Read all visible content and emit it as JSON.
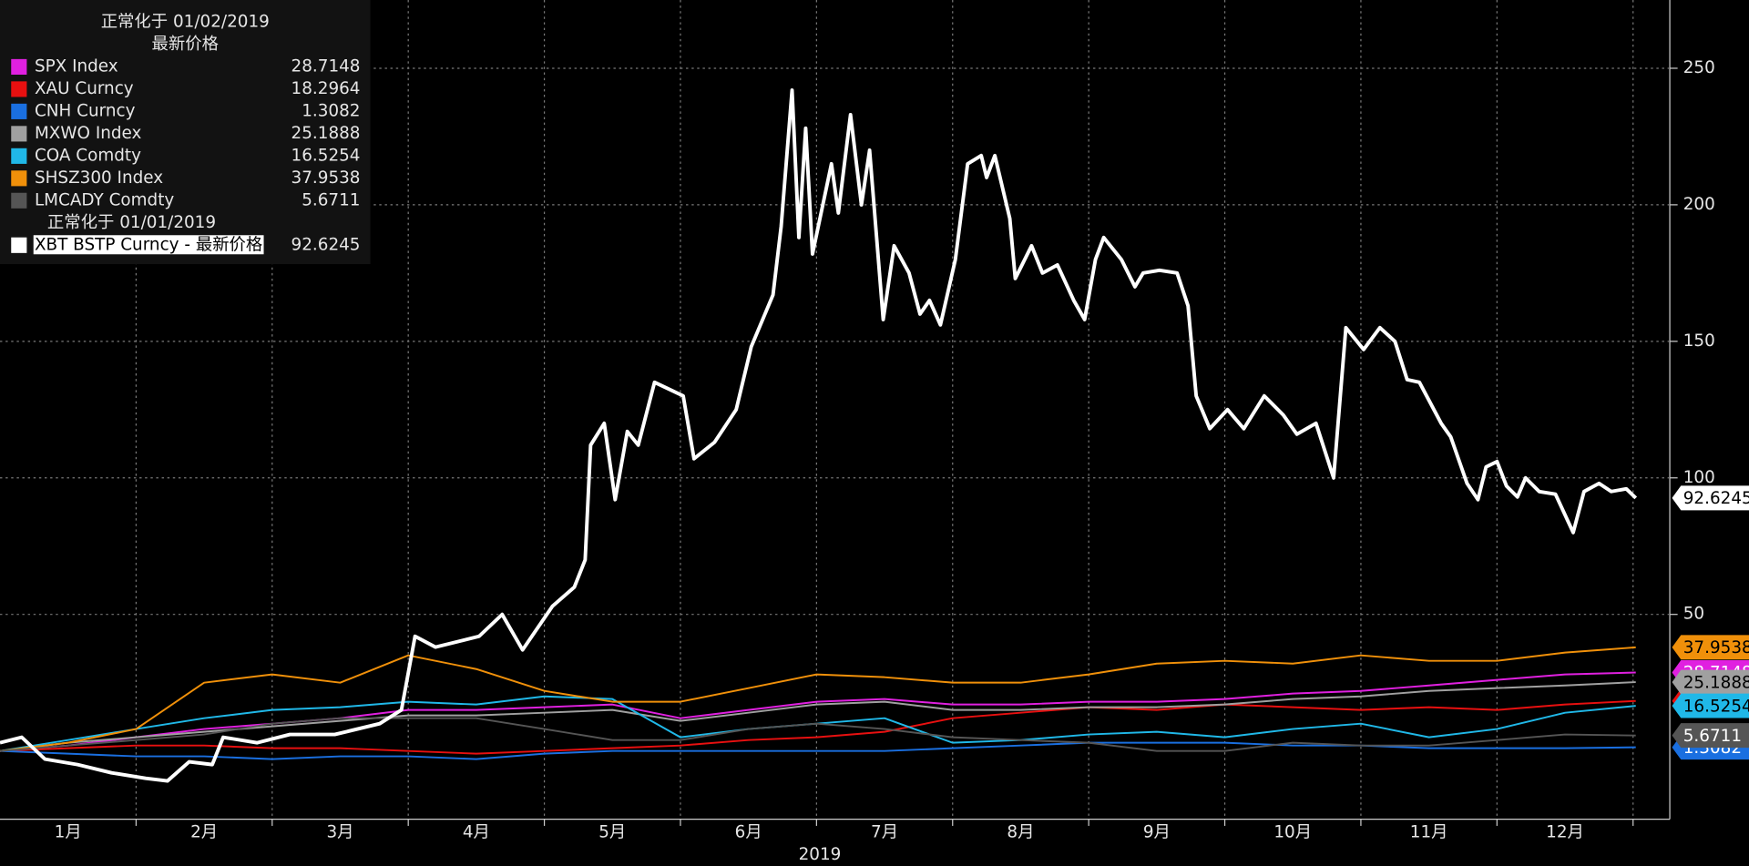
{
  "chart_data": {
    "type": "line",
    "legend_header": [
      "正常化于 01/02/2019",
      "最新价格"
    ],
    "legend_subheader": "正常化于 01/01/2019",
    "xlabel": "2019",
    "xlim": [
      1,
      13.27
    ],
    "xticks": [
      {
        "value": 1.5,
        "label": "1月"
      },
      {
        "value": 2.5,
        "label": "2月"
      },
      {
        "value": 3.5,
        "label": "3月"
      },
      {
        "value": 4.5,
        "label": "4月"
      },
      {
        "value": 5.5,
        "label": "5月"
      },
      {
        "value": 6.5,
        "label": "6月"
      },
      {
        "value": 7.5,
        "label": "7月"
      },
      {
        "value": 8.5,
        "label": "8月"
      },
      {
        "value": 9.5,
        "label": "9月"
      },
      {
        "value": 10.5,
        "label": "10月"
      },
      {
        "value": 11.5,
        "label": "11月"
      },
      {
        "value": 12.5,
        "label": "12月"
      }
    ],
    "x_gridlines": [
      2,
      3,
      4,
      5,
      6,
      7,
      8,
      9,
      10,
      11,
      12,
      13
    ],
    "ylim": [
      -25,
      275
    ],
    "yticks": [
      50,
      100,
      150,
      200,
      250
    ],
    "grid": true,
    "legend": "upper left",
    "x": [
      1,
      1.5,
      2,
      2.5,
      3,
      3.5,
      4,
      4.5,
      5,
      5.5,
      6,
      6.5,
      7,
      7.5,
      8,
      8.5,
      9,
      9.5,
      10,
      10.5,
      11,
      11.5,
      12,
      12.5,
      13.02
    ],
    "series": [
      {
        "name": "SPX Index",
        "color": "#e020e0",
        "values": [
          0,
          2,
          5,
          8,
          10,
          12,
          15,
          15,
          16,
          17,
          12,
          15,
          18,
          19,
          17,
          17,
          18,
          18,
          19,
          21,
          22,
          24,
          26,
          28,
          28.7148
        ]
      },
      {
        "name": "XAU Curncy",
        "color": "#e81010",
        "values": [
          0,
          1,
          2,
          2,
          1,
          1,
          0,
          -1,
          0,
          1,
          2,
          4,
          5,
          7,
          12,
          14,
          16,
          15,
          17,
          16,
          15,
          16,
          15,
          17,
          18.2964
        ]
      },
      {
        "name": "CNH Curncy",
        "color": "#1a6fe0",
        "values": [
          0,
          -1,
          -2,
          -2,
          -3,
          -2,
          -2,
          -3,
          -1,
          0,
          0,
          0,
          0,
          0,
          1,
          2,
          3,
          3,
          3,
          2,
          2,
          1,
          1,
          1,
          1.3082
        ]
      },
      {
        "name": "MXWO Index",
        "color": "#a0a0a0",
        "values": [
          0,
          3,
          5,
          7,
          9,
          11,
          13,
          13,
          14,
          15,
          11,
          14,
          17,
          18,
          15,
          15,
          16,
          16,
          17,
          19,
          20,
          22,
          23,
          24,
          25.1888
        ]
      },
      {
        "name": "COA Comdty",
        "color": "#20b8e8",
        "values": [
          0,
          4,
          8,
          12,
          15,
          16,
          18,
          17,
          20,
          19,
          5,
          8,
          10,
          12,
          3,
          4,
          6,
          7,
          5,
          8,
          10,
          5,
          8,
          14,
          16.5254
        ]
      },
      {
        "name": "SHSZ300 Index",
        "color": "#f0900a",
        "values": [
          0,
          3,
          8,
          25,
          28,
          25,
          35,
          30,
          22,
          18,
          18,
          23,
          28,
          27,
          25,
          25,
          28,
          32,
          33,
          32,
          35,
          33,
          33,
          36,
          37.9538
        ]
      },
      {
        "name": "LMCADY Comdty",
        "color": "#555555",
        "values": [
          0,
          2,
          4,
          6,
          10,
          12,
          12,
          12,
          8,
          4,
          4,
          8,
          10,
          8,
          5,
          4,
          3,
          0,
          0,
          3,
          2,
          2,
          4,
          6,
          5.6711
        ]
      },
      {
        "name": "XBT BSTP Curncy - 最新价格",
        "color": "#ffffff",
        "x": [
          1.0,
          1.16,
          1.33,
          1.57,
          1.82,
          2.07,
          2.23,
          2.39,
          2.56,
          2.64,
          2.89,
          3.13,
          3.46,
          3.79,
          3.95,
          4.05,
          4.2,
          4.36,
          4.52,
          4.69,
          4.84,
          5.06,
          5.22,
          5.3,
          5.34,
          5.44,
          5.52,
          5.61,
          5.69,
          5.81,
          6.02,
          6.1,
          6.25,
          6.41,
          6.52,
          6.68,
          6.74,
          6.82,
          6.87,
          6.92,
          6.97,
          7.11,
          7.16,
          7.25,
          7.33,
          7.39,
          7.49,
          7.57,
          7.68,
          7.76,
          7.83,
          7.91,
          8.02,
          8.11,
          8.21,
          8.25,
          8.31,
          8.42,
          8.46,
          8.58,
          8.66,
          8.77,
          8.89,
          8.97,
          9.05,
          9.11,
          9.24,
          9.34,
          9.4,
          9.52,
          9.65,
          9.73,
          9.79,
          9.89,
          10.02,
          10.14,
          10.29,
          10.43,
          10.53,
          10.67,
          10.8,
          10.89,
          11.02,
          11.14,
          11.25,
          11.34,
          11.43,
          11.59,
          11.66,
          11.78,
          11.86,
          11.92,
          12.0,
          12.07,
          12.15,
          12.21,
          12.31,
          12.43,
          12.56,
          12.64,
          12.75,
          12.84,
          12.95,
          13.02
        ],
        "values": [
          3,
          5,
          -3,
          -5,
          -8,
          -10,
          -11,
          -4,
          -5,
          5,
          3,
          6,
          6,
          10,
          15,
          42,
          38,
          40,
          42,
          50,
          37,
          53,
          60,
          70,
          112,
          120,
          92,
          117,
          112,
          135,
          130,
          107,
          113,
          125,
          148,
          167,
          192,
          242,
          188,
          228,
          182,
          215,
          197,
          233,
          200,
          220,
          158,
          185,
          175,
          160,
          165,
          156,
          180,
          215,
          218,
          210,
          218,
          195,
          173,
          185,
          175,
          178,
          165,
          158,
          180,
          188,
          180,
          170,
          175,
          176,
          175,
          163,
          130,
          118,
          125,
          118,
          130,
          123,
          116,
          120,
          100,
          155,
          147,
          155,
          150,
          136,
          135,
          120,
          115,
          98,
          92,
          104,
          106,
          97,
          93,
          100,
          95,
          94,
          80,
          95,
          98,
          95,
          96,
          92.6245
        ]
      }
    ]
  }
}
